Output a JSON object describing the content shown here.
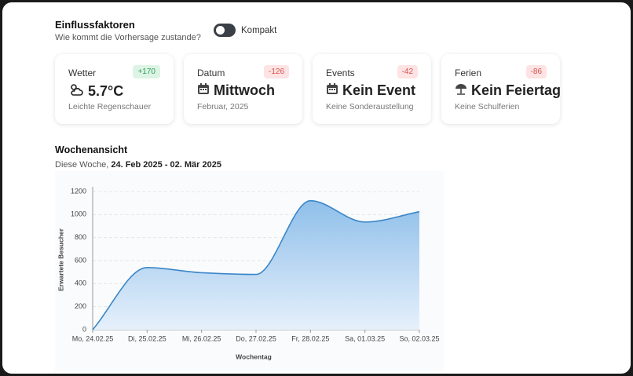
{
  "header": {
    "title": "Einflussfaktoren",
    "subtitle": "Wie kommt die Vorhersage zustande?",
    "toggle_label": "Kompakt"
  },
  "cards": [
    {
      "label": "Wetter",
      "badge": "+170",
      "badge_tone": "positive",
      "value": "5.7°C",
      "sub": "Leichte Regenschauer",
      "icon": "weather"
    },
    {
      "label": "Datum",
      "badge": "-126",
      "badge_tone": "negative",
      "value": "Mittwoch",
      "sub": "Februar, 2025",
      "icon": "calendar"
    },
    {
      "label": "Events",
      "badge": "-42",
      "badge_tone": "negative",
      "value": "Kein Event",
      "sub": "Keine Sonderaustellung",
      "icon": "calendar"
    },
    {
      "label": "Ferien",
      "badge": "-86",
      "badge_tone": "negative",
      "value": "Kein Feiertag",
      "sub": "Keine Schulferien",
      "icon": "umbrella"
    }
  ],
  "section": {
    "title": "Wochenansicht",
    "range_prefix": "Diese Woche,",
    "range": "24. Feb 2025 - 02. Mär 2025"
  },
  "chart_data": {
    "type": "area",
    "categories": [
      "Mo, 24.02.25",
      "Di, 25.02.25",
      "Mi, 26.02.25",
      "Do, 27.02.25",
      "Fr, 28.02.25",
      "Sa, 01.03.25",
      "So, 02.03.25"
    ],
    "values": [
      0,
      540,
      495,
      480,
      1120,
      935,
      1025
    ],
    "color": "#3a86c8",
    "xlabel": "Wochentag",
    "ylabel": "Erwartete Besucher",
    "ylim": [
      0,
      1200
    ],
    "yticks": [
      0,
      200,
      400,
      600,
      800,
      1000,
      1200
    ],
    "grid": true
  }
}
